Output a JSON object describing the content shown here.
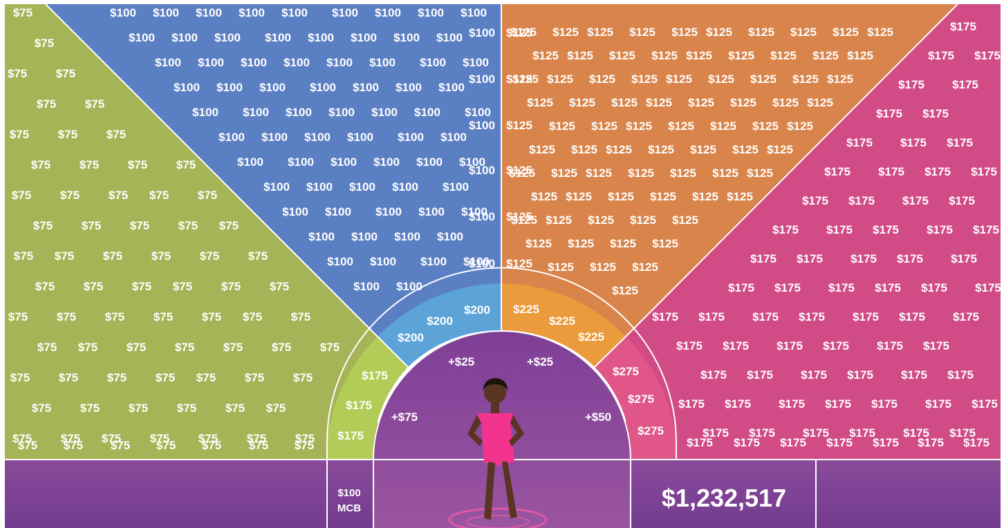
{
  "sections": {
    "green": {
      "label": "$75",
      "color": "#a6b356"
    },
    "blue": {
      "label": "$100",
      "color": "#5b7fc3"
    },
    "orange": {
      "label": "$125",
      "color": "#d9844a"
    },
    "pink": {
      "label": "$175",
      "color": "#d14b86"
    }
  },
  "inner_ring": {
    "green": {
      "label": "$175",
      "color": "#b2cc57"
    },
    "blue": {
      "label": "$200",
      "color": "#5ca3d8"
    },
    "orange": {
      "label": "$225",
      "color": "#eb9a3c"
    },
    "pink": {
      "label": "$275",
      "color": "#e05688"
    }
  },
  "hub": {
    "color": "#8a4797",
    "labels": {
      "top_left": "+$25",
      "top_right": "+$25",
      "left": "+$75",
      "right": "+$50"
    }
  },
  "bottom_bar": {
    "color": "#7e3f96",
    "mcb_value": "$100",
    "mcb_label": "MCB",
    "total": "$1,232,517"
  },
  "colors": {
    "divider": "#ffffff",
    "dress": "#f2348f",
    "skin": "#5a3422"
  }
}
